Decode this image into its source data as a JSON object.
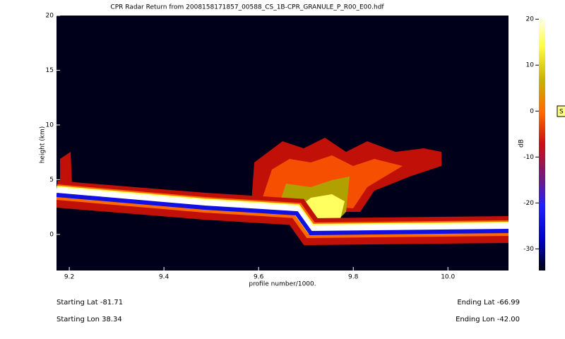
{
  "chart_data": {
    "type": "heatmap",
    "title": "CPR Radar Return from 2008158171857_00588_CS_1B-CPR_GRANULE_P_R00_E00.hdf",
    "xlabel": "profile number/1000.",
    "ylabel": "height (km)",
    "xlim": [
      9.173,
      10.128
    ],
    "xticks": [
      9.2,
      9.4,
      9.6,
      9.8,
      {
        "value": 10,
        "label": "10.0"
      }
    ],
    "ylim": [
      -3.3,
      20
    ],
    "yticks": [
      0,
      5,
      10,
      15,
      20
    ],
    "colorbar": {
      "label": "dB",
      "lim": [
        -34.7,
        20.8
      ],
      "ticks": [
        -30,
        -20,
        -10,
        0,
        10,
        20
      ]
    },
    "badge": "S",
    "info": {
      "start_lat": "Starting Lat -81.71",
      "start_lon": "Starting Lon 38.34",
      "end_lat": "Ending Lat -66.99",
      "end_lon": "Ending Lon -42.00"
    }
  }
}
